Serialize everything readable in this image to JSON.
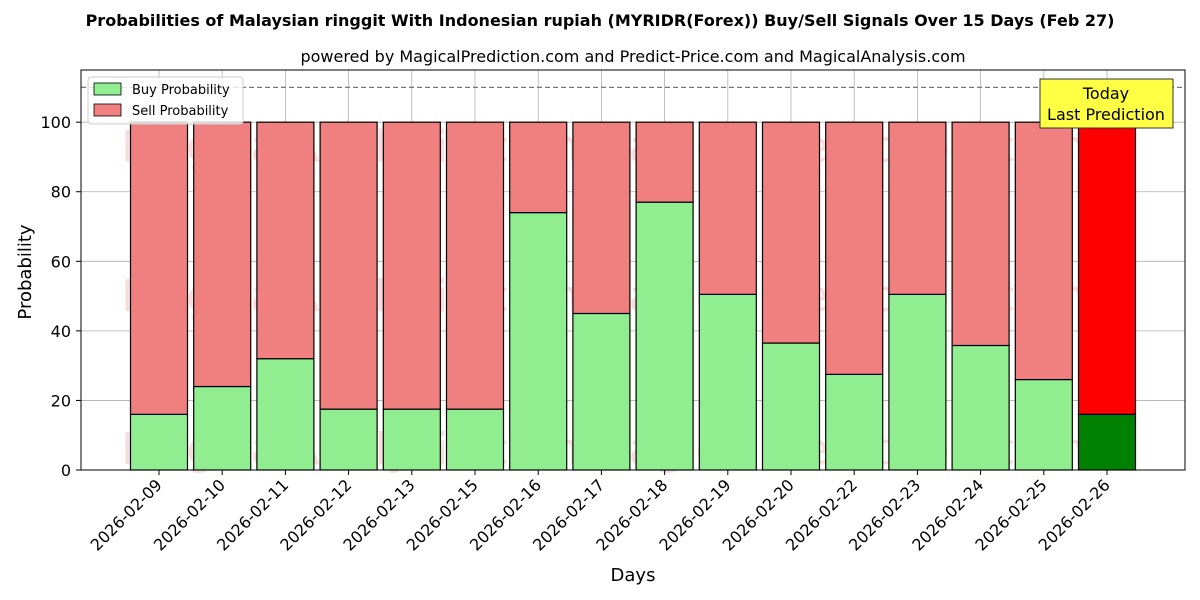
{
  "chart_data": {
    "type": "bar",
    "stacked": true,
    "title": "Probabilities of Malaysian ringgit With Indonesian rupiah (MYRIDR(Forex)) Buy/Sell Signals Over 15 Days (Feb 27)",
    "subtitle": "powered by MagicalPrediction.com and Predict-Price.com and MagicalAnalysis.com",
    "xlabel": "Days",
    "ylabel": "Probability",
    "ylim": [
      0,
      115
    ],
    "yticks": [
      0,
      20,
      40,
      60,
      80,
      100
    ],
    "reference_line": 110,
    "grid": true,
    "legend_position": "top-left",
    "categories": [
      "2026-02-09",
      "2026-02-10",
      "2026-02-11",
      "2026-02-12",
      "2026-02-13",
      "2026-02-15",
      "2026-02-16",
      "2026-02-17",
      "2026-02-18",
      "2026-02-19",
      "2026-02-20",
      "2026-02-22",
      "2026-02-23",
      "2026-02-24",
      "2026-02-25",
      "2026-02-26"
    ],
    "series": [
      {
        "name": "Buy Probability",
        "color": "#90ee90",
        "values": [
          16,
          24,
          32,
          17.5,
          17.5,
          17.5,
          74,
          45,
          77,
          50.5,
          36.5,
          27.5,
          50.5,
          35.8,
          26,
          16
        ]
      },
      {
        "name": "Sell Probability",
        "color": "#f08080",
        "values": [
          84,
          76,
          68,
          82.5,
          82.5,
          82.5,
          26,
          55,
          23,
          49.5,
          63.5,
          72.5,
          49.5,
          64.2,
          74,
          84
        ]
      }
    ],
    "highlight": {
      "index": 15,
      "buy_color": "#008000",
      "sell_color": "#ff0000"
    },
    "annotation": {
      "text_line1": "Today",
      "text_line2": "Last Prediction",
      "background": "#ffff44"
    },
    "watermarks": [
      "MagicalAnalysis.com",
      "MagicalPrediction.com"
    ]
  }
}
